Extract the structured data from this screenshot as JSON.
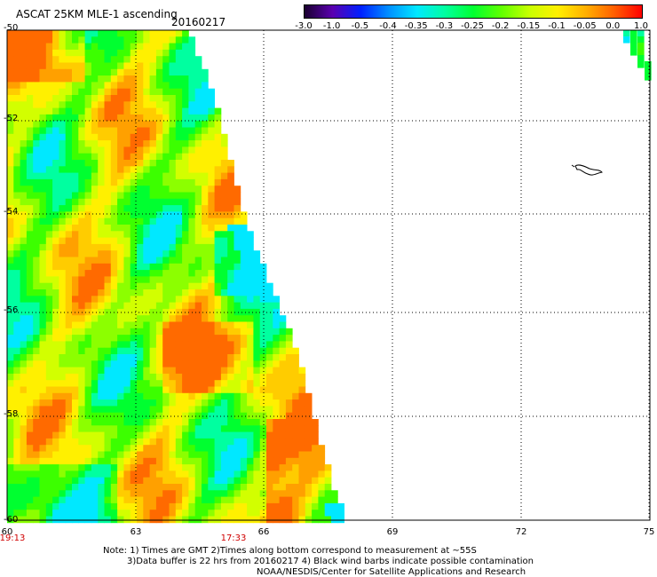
{
  "header": {
    "title": "ASCAT 25KM MLE-1 ascending",
    "date": "20160217"
  },
  "colorbar": {
    "labels": [
      "-3.0",
      "-1.0",
      "-0.5",
      "-0.4",
      "-0.35",
      "-0.3",
      "-0.25",
      "-0.2",
      "-0.15",
      "-0.1",
      "-0.05",
      "0.0",
      "1.0"
    ],
    "colors": [
      "#1a0030",
      "#5a00b0",
      "#0020ff",
      "#0090ff",
      "#00e8ff",
      "#00ffa0",
      "#00ff30",
      "#60ff00",
      "#c8ff00",
      "#fff000",
      "#ffb000",
      "#ff6000",
      "#ff0000"
    ]
  },
  "axes": {
    "lat_labels": [
      "-50",
      "-52",
      "-54",
      "-56",
      "-58",
      "-60"
    ],
    "lon_labels": [
      "60",
      "63",
      "66",
      "69",
      "72",
      "75"
    ]
  },
  "times": [
    "19:13",
    "17:33"
  ],
  "notes": {
    "line1": "Note: 1) Times are GMT 2)Times along bottom correspond to measurement at ~55S",
    "line2": "3)Data buffer is 22 hrs from 20160217 4) Black wind barbs indicate possible contamination",
    "line3": "NOAA/NESDIS/Center for Satellite Applications and Research"
  }
}
